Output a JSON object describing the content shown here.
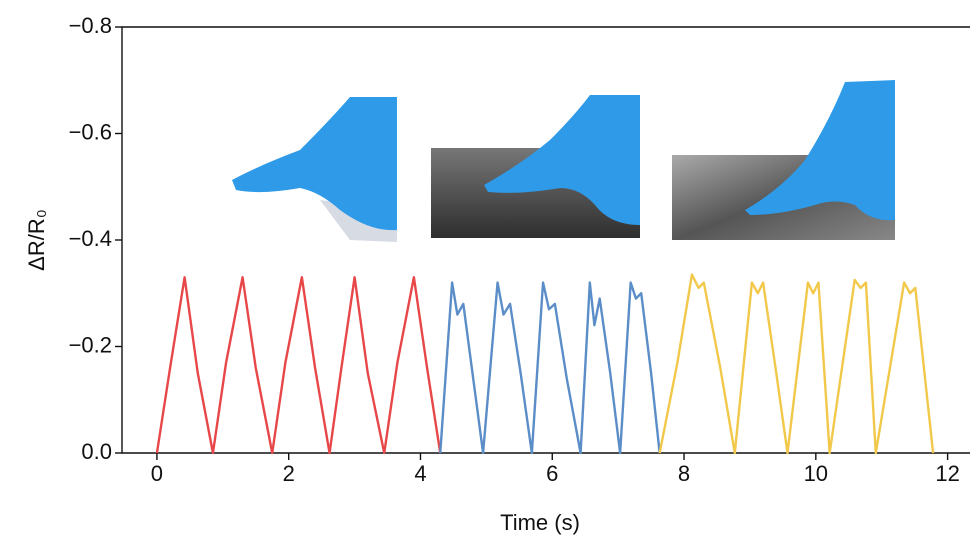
{
  "chart_data": {
    "type": "line",
    "xlabel": "Time (s)",
    "ylabel": "ΔR/R₀",
    "xlim": [
      -0.53,
      12.34
    ],
    "ylim": [
      0,
      -0.8
    ],
    "xticks": [
      0,
      2,
      4,
      6,
      8,
      10,
      12
    ],
    "yticks": [
      {
        "value": 0,
        "label": "0.0"
      },
      {
        "value": -0.2,
        "label": "−0.2"
      },
      {
        "value": -0.4,
        "label": "−0.4"
      },
      {
        "value": -0.6,
        "label": "−0.6"
      },
      {
        "value": -0.8,
        "label": "−0.8"
      }
    ],
    "series": [
      {
        "color": "#e8474a",
        "x": [
          0,
          0.2,
          0.42,
          0.62,
          0.85,
          1.05,
          1.3,
          1.5,
          1.75,
          1.95,
          2.2,
          2.4,
          2.62,
          2.8,
          3.0,
          3.2,
          3.45,
          3.65,
          3.9,
          4.1,
          4.3
        ],
        "values": [
          0,
          -0.16,
          -0.33,
          -0.15,
          0,
          -0.17,
          -0.33,
          -0.16,
          0,
          -0.17,
          -0.33,
          -0.16,
          0,
          -0.16,
          -0.33,
          -0.15,
          0,
          -0.17,
          -0.33,
          -0.16,
          0
        ]
      },
      {
        "color": "#5b8ec8",
        "x": [
          4.3,
          4.48,
          4.56,
          4.65,
          4.8,
          4.95,
          5.17,
          5.26,
          5.36,
          5.52,
          5.69,
          5.86,
          5.95,
          6.04,
          6.22,
          6.43,
          6.57,
          6.64,
          6.72,
          6.88,
          7.03,
          7.19,
          7.27,
          7.35,
          7.5,
          7.63
        ],
        "values": [
          0,
          -0.32,
          -0.26,
          -0.28,
          -0.14,
          0,
          -0.32,
          -0.26,
          -0.28,
          -0.15,
          0,
          -0.32,
          -0.27,
          -0.28,
          -0.14,
          0,
          -0.32,
          -0.24,
          -0.29,
          -0.15,
          0,
          -0.32,
          -0.29,
          -0.3,
          -0.15,
          0
        ]
      },
      {
        "color": "#f2c84b",
        "x": [
          7.63,
          7.9,
          8.12,
          8.22,
          8.3,
          8.55,
          8.77,
          9.03,
          9.12,
          9.2,
          9.4,
          9.57,
          9.88,
          9.96,
          10.04,
          10.21,
          10.59,
          10.68,
          10.76,
          10.91,
          11.34,
          11.43,
          11.51,
          11.78
        ],
        "values": [
          0,
          -0.17,
          -0.335,
          -0.31,
          -0.32,
          -0.16,
          0,
          -0.32,
          -0.3,
          -0.32,
          -0.15,
          0,
          -0.32,
          -0.3,
          -0.32,
          0,
          -0.325,
          -0.31,
          -0.32,
          0,
          -0.32,
          -0.3,
          -0.31,
          0
        ]
      }
    ]
  }
}
